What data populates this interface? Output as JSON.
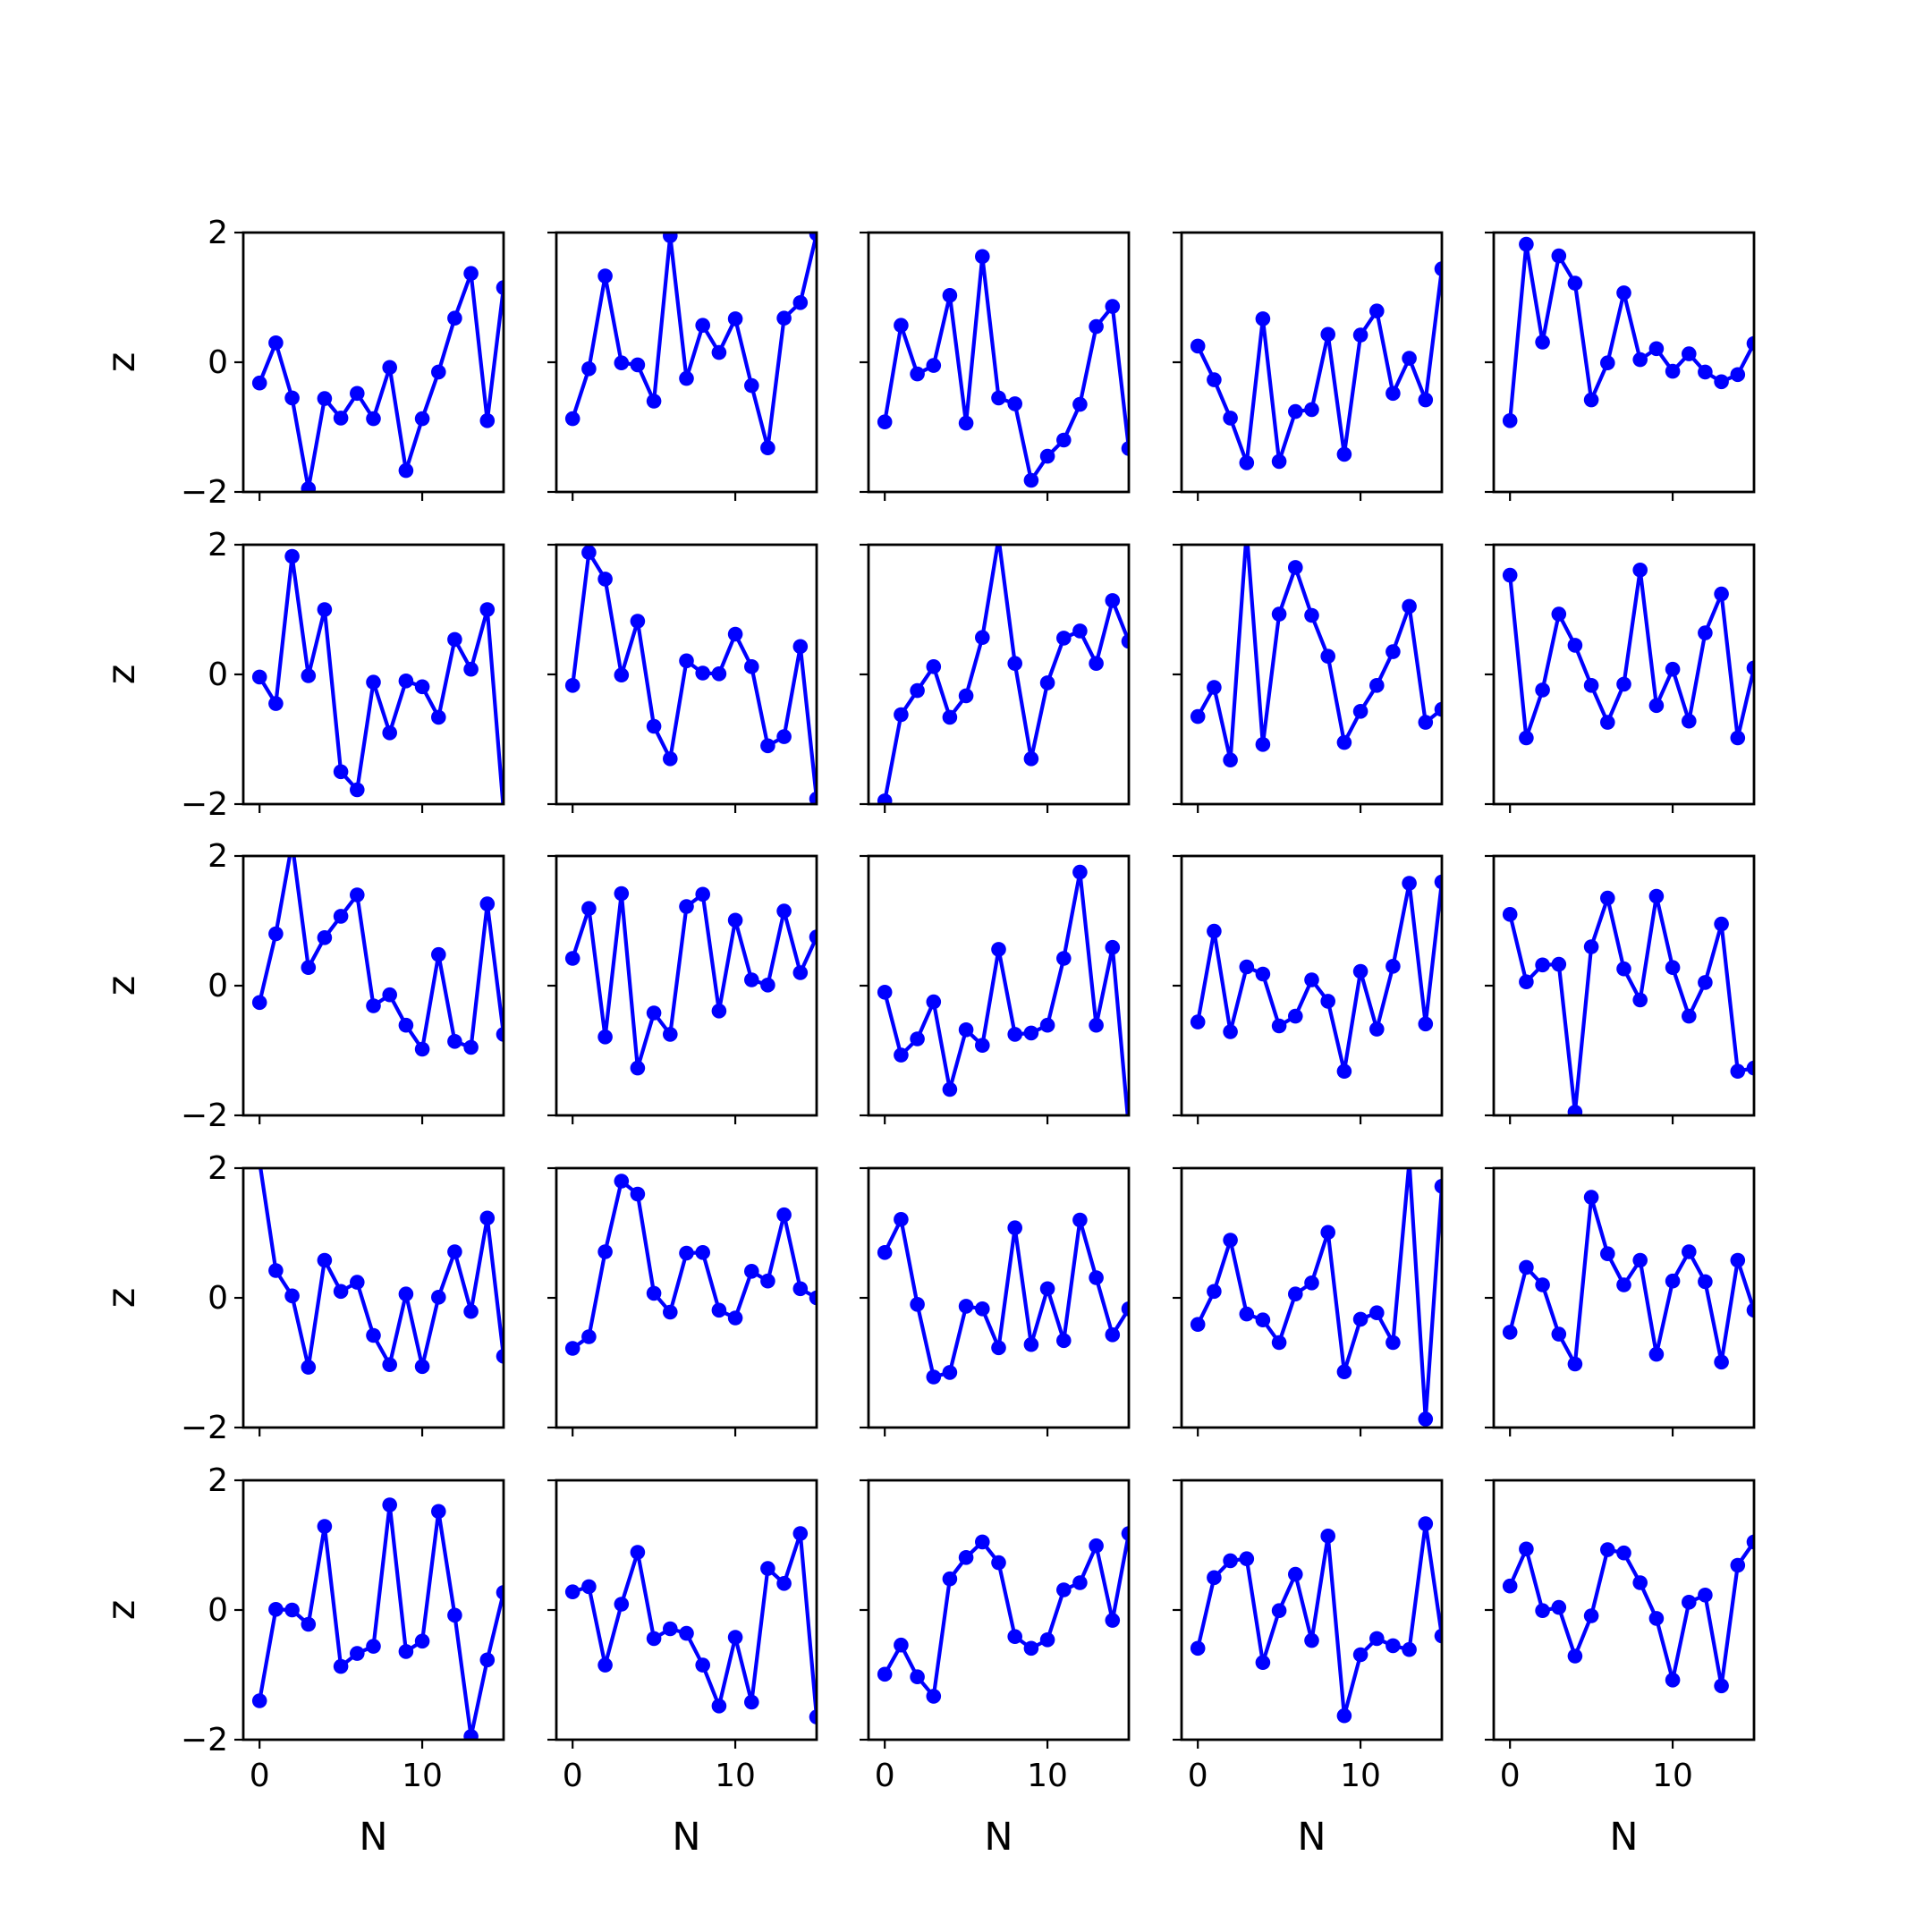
{
  "chart_data": {
    "type": "line",
    "layout": "5x5 grid of line plots with markers",
    "grid": false,
    "line_color": "#0000ff",
    "marker": "circle",
    "xlabel": "N",
    "ylabel": "z",
    "xlim": [
      -1,
      15
    ],
    "ylim": [
      -2,
      2
    ],
    "xticks": [
      0,
      10
    ],
    "yticks": [
      -2,
      0,
      2
    ],
    "ytick_labels": [
      "−2",
      "0",
      "2"
    ],
    "x": [
      0,
      1,
      2,
      3,
      4,
      5,
      6,
      7,
      8,
      9,
      10,
      11,
      12,
      13,
      14,
      15
    ],
    "panels": [
      {
        "row": 1,
        "col": 1,
        "values": [
          -0.32,
          0.3,
          -0.55,
          -1.95,
          -0.56,
          -0.86,
          -0.48,
          -0.87,
          -0.08,
          -1.67,
          -0.87,
          -0.15,
          0.68,
          1.37,
          -0.9,
          1.15
        ]
      },
      {
        "row": 1,
        "col": 2,
        "values": [
          -0.87,
          -0.1,
          1.33,
          -0.01,
          -0.04,
          -0.6,
          1.95,
          -0.25,
          0.57,
          0.15,
          0.67,
          -0.36,
          -1.32,
          0.68,
          0.92,
          1.98
        ]
      },
      {
        "row": 1,
        "col": 3,
        "values": [
          -0.92,
          0.57,
          -0.18,
          -0.05,
          1.03,
          -0.94,
          1.63,
          -0.55,
          -0.64,
          -1.82,
          -1.45,
          -1.2,
          -0.65,
          0.55,
          0.86,
          -1.33
        ]
      },
      {
        "row": 1,
        "col": 4,
        "values": [
          0.25,
          -0.27,
          -0.86,
          -1.55,
          0.67,
          -1.53,
          -0.76,
          -0.73,
          0.43,
          -1.42,
          0.42,
          0.79,
          -0.48,
          0.06,
          -0.58,
          1.44
        ]
      },
      {
        "row": 1,
        "col": 5,
        "values": [
          -0.9,
          1.82,
          0.31,
          1.64,
          1.22,
          -0.58,
          -0.01,
          1.07,
          0.04,
          0.21,
          -0.14,
          0.13,
          -0.15,
          -0.3,
          -0.19,
          0.29
        ]
      },
      {
        "row": 2,
        "col": 1,
        "values": [
          -0.04,
          -0.45,
          1.82,
          -0.02,
          1.0,
          -1.5,
          -1.78,
          -0.12,
          -0.9,
          -0.1,
          -0.19,
          -0.66,
          0.54,
          0.08,
          1.0,
          -2.1
        ]
      },
      {
        "row": 2,
        "col": 2,
        "values": [
          -0.17,
          1.88,
          1.47,
          -0.01,
          0.82,
          -0.8,
          -1.3,
          0.21,
          0.02,
          0.01,
          0.62,
          0.12,
          -1.1,
          -0.96,
          0.43,
          -1.92
        ]
      },
      {
        "row": 2,
        "col": 3,
        "values": [
          -1.95,
          -0.62,
          -0.25,
          0.12,
          -0.66,
          -0.33,
          0.57,
          2.1,
          0.17,
          -1.3,
          -0.13,
          0.56,
          0.67,
          0.17,
          1.14,
          0.51
        ]
      },
      {
        "row": 2,
        "col": 4,
        "values": [
          -0.65,
          -0.2,
          -1.32,
          2.2,
          -1.08,
          0.93,
          1.65,
          0.91,
          0.28,
          -1.05,
          -0.57,
          -0.17,
          0.35,
          1.05,
          -0.74,
          -0.54
        ]
      },
      {
        "row": 2,
        "col": 5,
        "values": [
          1.53,
          -0.98,
          -0.24,
          0.93,
          0.45,
          -0.17,
          -0.74,
          -0.15,
          1.61,
          -0.48,
          0.08,
          -0.72,
          0.64,
          1.24,
          -0.98,
          0.1
        ]
      },
      {
        "row": 3,
        "col": 1,
        "values": [
          -0.26,
          0.8,
          2.2,
          0.28,
          0.74,
          1.07,
          1.4,
          -0.31,
          -0.14,
          -0.61,
          -0.98,
          0.48,
          -0.86,
          -0.95,
          1.26,
          -0.75
        ]
      },
      {
        "row": 3,
        "col": 2,
        "values": [
          0.42,
          1.19,
          -0.79,
          1.42,
          -1.27,
          -0.42,
          -0.75,
          1.22,
          1.41,
          -0.39,
          1.01,
          0.09,
          0.01,
          1.15,
          0.2,
          0.75
        ]
      },
      {
        "row": 3,
        "col": 3,
        "values": [
          -0.1,
          -1.07,
          -0.82,
          -0.25,
          -1.6,
          -0.68,
          -0.92,
          0.56,
          -0.75,
          -0.73,
          -0.61,
          0.42,
          1.75,
          -0.61,
          0.59,
          -2.2
        ]
      },
      {
        "row": 3,
        "col": 4,
        "values": [
          -0.56,
          0.84,
          -0.71,
          0.29,
          0.18,
          -0.62,
          -0.47,
          0.09,
          -0.24,
          -1.32,
          0.22,
          -0.67,
          0.3,
          1.58,
          -0.59,
          1.6
        ]
      },
      {
        "row": 3,
        "col": 5,
        "values": [
          1.1,
          0.06,
          0.32,
          0.33,
          -1.95,
          0.6,
          1.35,
          0.26,
          -0.22,
          1.38,
          0.28,
          -0.47,
          0.05,
          0.95,
          -1.32,
          -1.27
        ]
      },
      {
        "row": 4,
        "col": 1,
        "values": [
          2.1,
          0.42,
          0.03,
          -1.07,
          0.58,
          0.1,
          0.24,
          -0.58,
          -1.03,
          0.06,
          -1.06,
          0.01,
          0.71,
          -0.21,
          1.23,
          -0.9
        ]
      },
      {
        "row": 4,
        "col": 2,
        "values": [
          -0.78,
          -0.6,
          0.71,
          1.8,
          1.6,
          0.07,
          -0.22,
          0.69,
          0.7,
          -0.19,
          -0.31,
          0.41,
          0.26,
          1.28,
          0.14,
          0.0
        ]
      },
      {
        "row": 4,
        "col": 3,
        "values": [
          0.7,
          1.21,
          -0.1,
          -1.22,
          -1.15,
          -0.13,
          -0.17,
          -0.77,
          1.08,
          -0.72,
          0.14,
          -0.66,
          1.2,
          0.31,
          -0.57,
          -0.17
        ]
      },
      {
        "row": 4,
        "col": 4,
        "values": [
          -0.41,
          0.1,
          0.89,
          -0.25,
          -0.34,
          -0.69,
          0.06,
          0.23,
          1.01,
          -1.14,
          -0.33,
          -0.23,
          -0.69,
          2.1,
          -1.87,
          1.72
        ]
      },
      {
        "row": 4,
        "col": 5,
        "values": [
          -0.53,
          0.47,
          0.2,
          -0.56,
          -1.02,
          1.55,
          0.68,
          0.2,
          0.58,
          -0.87,
          0.26,
          0.71,
          0.25,
          -0.99,
          0.58,
          -0.19
        ]
      },
      {
        "row": 5,
        "col": 1,
        "values": [
          -1.4,
          0.01,
          0.0,
          -0.22,
          1.29,
          -0.87,
          -0.67,
          -0.56,
          1.62,
          -0.64,
          -0.48,
          1.52,
          -0.08,
          -1.95,
          -0.77,
          0.27
        ]
      },
      {
        "row": 5,
        "col": 2,
        "values": [
          0.28,
          0.36,
          -0.85,
          0.09,
          0.89,
          -0.44,
          -0.29,
          -0.36,
          -0.85,
          -1.48,
          -0.42,
          -1.42,
          0.64,
          0.41,
          1.18,
          -1.65
        ]
      },
      {
        "row": 5,
        "col": 3,
        "values": [
          -0.99,
          -0.54,
          -1.03,
          -1.33,
          0.48,
          0.81,
          1.05,
          0.73,
          -0.41,
          -0.59,
          -0.46,
          0.31,
          0.42,
          0.99,
          -0.16,
          1.18
        ]
      },
      {
        "row": 5,
        "col": 4,
        "values": [
          -0.59,
          0.5,
          0.76,
          0.79,
          -0.81,
          -0.01,
          0.55,
          -0.47,
          1.14,
          -1.63,
          -0.69,
          -0.44,
          -0.55,
          -0.61,
          1.33,
          -0.4
        ]
      },
      {
        "row": 5,
        "col": 5,
        "values": [
          0.37,
          0.94,
          -0.01,
          0.04,
          -0.71,
          -0.09,
          0.93,
          0.88,
          0.42,
          -0.13,
          -1.08,
          0.12,
          0.23,
          -1.17,
          0.69,
          1.05
        ]
      }
    ]
  }
}
